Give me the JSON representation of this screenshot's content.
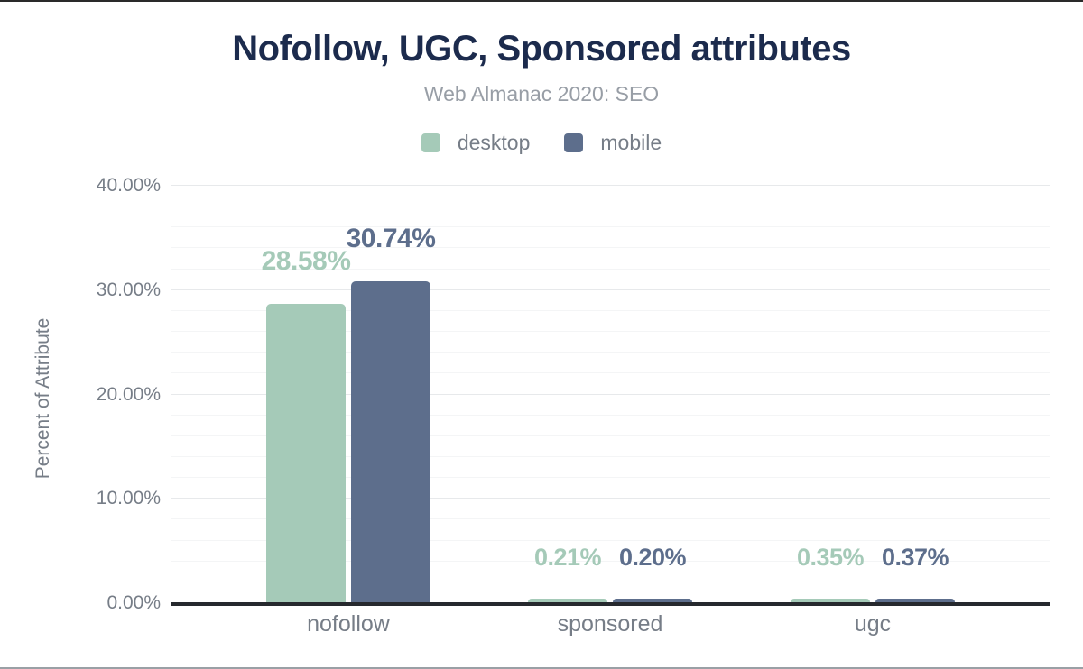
{
  "header": {
    "title": "Nofollow, UGC, Sponsored attributes",
    "subtitle": "Web Almanac 2020: SEO"
  },
  "legend": [
    {
      "label": "desktop",
      "color": "#a5cab8"
    },
    {
      "label": "mobile",
      "color": "#5d6e8c"
    }
  ],
  "colors": {
    "title": "#1c2b4d",
    "subtitle": "#989ea6",
    "axis_text": "#767d87",
    "axis_line": "#26292e",
    "grid_major": "#e7e9eb",
    "grid_minor": "#f4f5f6",
    "desktop": "#a5cab8",
    "mobile": "#5d6e8c"
  },
  "chart_data": {
    "type": "bar",
    "title": "Nofollow, UGC, Sponsored attributes",
    "subtitle": "Web Almanac 2020: SEO",
    "categories": [
      "nofollow",
      "sponsored",
      "ugc"
    ],
    "series": [
      {
        "name": "desktop",
        "color": "#a5cab8",
        "values": [
          28.58,
          0.21,
          0.35
        ],
        "labels": [
          "28.58%",
          "0.21%",
          "0.35%"
        ]
      },
      {
        "name": "mobile",
        "color": "#5d6e8c",
        "values": [
          30.74,
          0.2,
          0.37
        ],
        "labels": [
          "30.74%",
          "0.20%",
          "0.37%"
        ]
      }
    ],
    "xlabel": "",
    "ylabel": "Percent of Attribute",
    "y_ticks": [
      "0.00%",
      "10.00%",
      "20.00%",
      "30.00%",
      "40.00%"
    ],
    "ylim": [
      0,
      40
    ],
    "grid": {
      "minor_step_pct": 2,
      "major_step_pct": 10,
      "grid_on": true
    },
    "legend_position": "top"
  }
}
